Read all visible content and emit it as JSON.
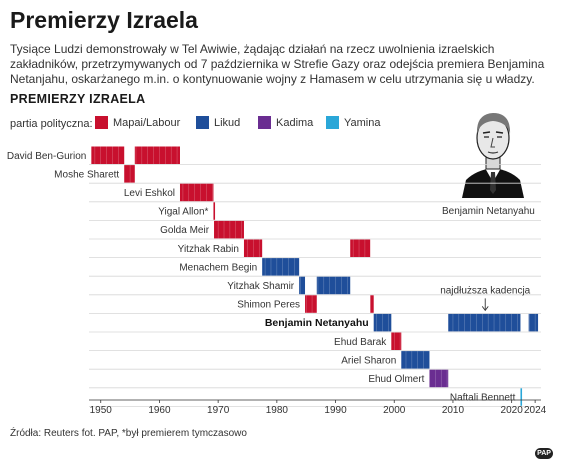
{
  "header": {
    "title": "Premierzy Izraela",
    "subtitle": "Tysiące Ludzi demonstrowały w Tel Awiwie, żądając działań na rzecz uwolnienia izraelskich zakładników, przetrzymywanych od 7 października w Strefie Gazy oraz odejścia premiera Benjamina Netanjahu, oskarżanego m.in. o kontynuowanie wojny z Hamasem w celu utrzymania się u władzy.",
    "chart_heading": "PREMIERZY IZRAELA"
  },
  "legend": {
    "label": "partia polityczna:",
    "items": [
      {
        "name": "Mapai/Labour",
        "color": "#c8102e"
      },
      {
        "name": "Likud",
        "color": "#1f4e9a"
      },
      {
        "name": "Kadima",
        "color": "#6a2d91"
      },
      {
        "name": "Yamina",
        "color": "#2aa7d8"
      }
    ]
  },
  "portrait_caption": "Benjamin Netanyahu",
  "source": "Źródła: Reuters fot. PAP, *był premierem tymczasowo",
  "logo_text": "PAP",
  "chart_data": {
    "type": "gantt",
    "xlim": [
      1948,
      2025
    ],
    "x_ticks": [
      1950,
      1960,
      1970,
      1980,
      1990,
      2000,
      2010,
      2020,
      2024
    ],
    "x_tick_labels": [
      "1950",
      "1960",
      "1970",
      "1980",
      "1990",
      "2000",
      "2010",
      "2020",
      "2024"
    ],
    "annotation": "najdłuższa kadencja",
    "rows": [
      {
        "name": "David Ben-Gurion",
        "terms": [
          {
            "start": 1948.4,
            "end": 1954.0,
            "party": "Mapai/Labour"
          },
          {
            "start": 1955.8,
            "end": 1963.5,
            "party": "Mapai/Labour"
          }
        ]
      },
      {
        "name": "Moshe Sharett",
        "terms": [
          {
            "start": 1954.0,
            "end": 1955.8,
            "party": "Mapai/Labour"
          }
        ]
      },
      {
        "name": "Levi Eshkol",
        "terms": [
          {
            "start": 1963.5,
            "end": 1969.2,
            "party": "Mapai/Labour"
          }
        ]
      },
      {
        "name": "Yigal Allon*",
        "terms": [
          {
            "start": 1969.2,
            "end": 1969.3,
            "party": "Mapai/Labour"
          }
        ]
      },
      {
        "name": "Golda Meir",
        "terms": [
          {
            "start": 1969.3,
            "end": 1974.4,
            "party": "Mapai/Labour"
          }
        ]
      },
      {
        "name": "Yitzhak Rabin",
        "terms": [
          {
            "start": 1974.4,
            "end": 1977.5,
            "party": "Mapai/Labour"
          },
          {
            "start": 1992.5,
            "end": 1995.9,
            "party": "Mapai/Labour"
          }
        ]
      },
      {
        "name": "Menachem Begin",
        "terms": [
          {
            "start": 1977.5,
            "end": 1983.8,
            "party": "Likud"
          }
        ]
      },
      {
        "name": "Yitzhak Shamir",
        "terms": [
          {
            "start": 1983.8,
            "end": 1984.8,
            "party": "Likud"
          },
          {
            "start": 1986.8,
            "end": 1992.5,
            "party": "Likud"
          }
        ]
      },
      {
        "name": "Shimon Peres",
        "terms": [
          {
            "start": 1984.8,
            "end": 1986.8,
            "party": "Mapai/Labour"
          },
          {
            "start": 1995.9,
            "end": 1996.5,
            "party": "Mapai/Labour"
          }
        ]
      },
      {
        "name": "Benjamin Netanyahu",
        "terms": [
          {
            "start": 1996.5,
            "end": 1999.5,
            "party": "Likud"
          },
          {
            "start": 2009.2,
            "end": 2021.5,
            "party": "Likud"
          },
          {
            "start": 2022.9,
            "end": 2024.5,
            "party": "Likud"
          }
        ]
      },
      {
        "name": "Ehud Barak",
        "terms": [
          {
            "start": 1999.5,
            "end": 2001.2,
            "party": "Mapai/Labour"
          }
        ]
      },
      {
        "name": "Ariel Sharon",
        "terms": [
          {
            "start": 2001.2,
            "end": 2006.0,
            "party": "Likud"
          }
        ]
      },
      {
        "name": "Ehud Olmert",
        "terms": [
          {
            "start": 2006.0,
            "end": 2009.2,
            "party": "Kadima"
          }
        ]
      },
      {
        "name": "Naftali Bennett",
        "terms": [
          {
            "start": 2021.5,
            "end": 2021.7,
            "party": "Yamina"
          }
        ]
      }
    ]
  }
}
